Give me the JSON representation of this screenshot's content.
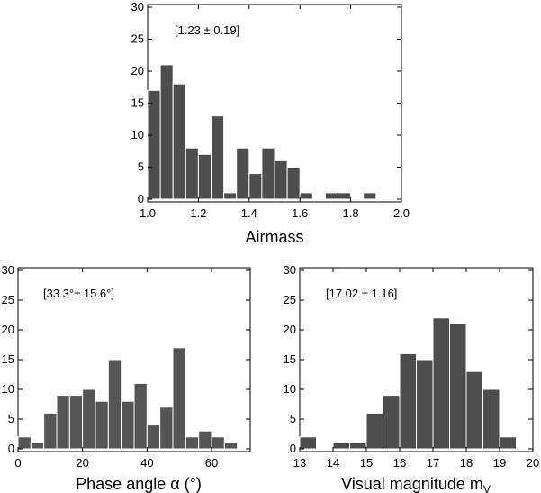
{
  "chart_data": [
    {
      "type": "bar",
      "xlabel": "Airmass",
      "annotation": "[1.23 ± 0.19]",
      "xlim": [
        1.0,
        2.0
      ],
      "ylim": [
        0,
        30
      ],
      "xticks": [
        "1.0",
        "1.2",
        "1.4",
        "1.6",
        "1.8",
        "2.0"
      ],
      "yticks": [
        "0",
        "5",
        "10",
        "15",
        "20",
        "25",
        "30"
      ],
      "bin_width": 0.05,
      "bin_start": 1.0,
      "values": [
        17,
        21,
        18,
        8,
        7,
        13,
        1,
        8,
        4,
        8,
        6,
        5,
        1,
        0,
        1,
        1,
        0,
        1,
        0,
        0
      ],
      "bar_color": "#4d4d4d"
    },
    {
      "type": "bar",
      "xlabel": "Phase angle α (°)",
      "annotation": "[33.3°± 15.6°]",
      "xlim": [
        0,
        72
      ],
      "ylim": [
        0,
        30
      ],
      "xticks": [
        "0",
        "20",
        "40",
        "60"
      ],
      "yticks": [
        "0",
        "5",
        "10",
        "15",
        "20",
        "25",
        "30"
      ],
      "bin_width": 4,
      "bin_start": 0,
      "values": [
        2,
        1,
        6,
        9,
        9,
        10,
        8,
        15,
        8,
        11,
        4,
        7,
        17,
        2,
        3,
        2,
        1,
        0
      ],
      "bar_color": "#555555"
    },
    {
      "type": "bar",
      "xlabel": "Visual magnitude m",
      "xlabel_sub": "V",
      "annotation": "[17.02 ± 1.16]",
      "xlim": [
        13,
        20
      ],
      "ylim": [
        0,
        30
      ],
      "xticks": [
        "13",
        "14",
        "15",
        "16",
        "17",
        "18",
        "19",
        "20"
      ],
      "yticks": [
        "0",
        "5",
        "10",
        "15",
        "20",
        "25",
        "30"
      ],
      "bin_width": 0.5,
      "bin_start": 13.0,
      "values": [
        2,
        0,
        1,
        1,
        6,
        9,
        16,
        15,
        22,
        21,
        13,
        10,
        2,
        0
      ],
      "bar_color": "#4d4d4d"
    }
  ]
}
